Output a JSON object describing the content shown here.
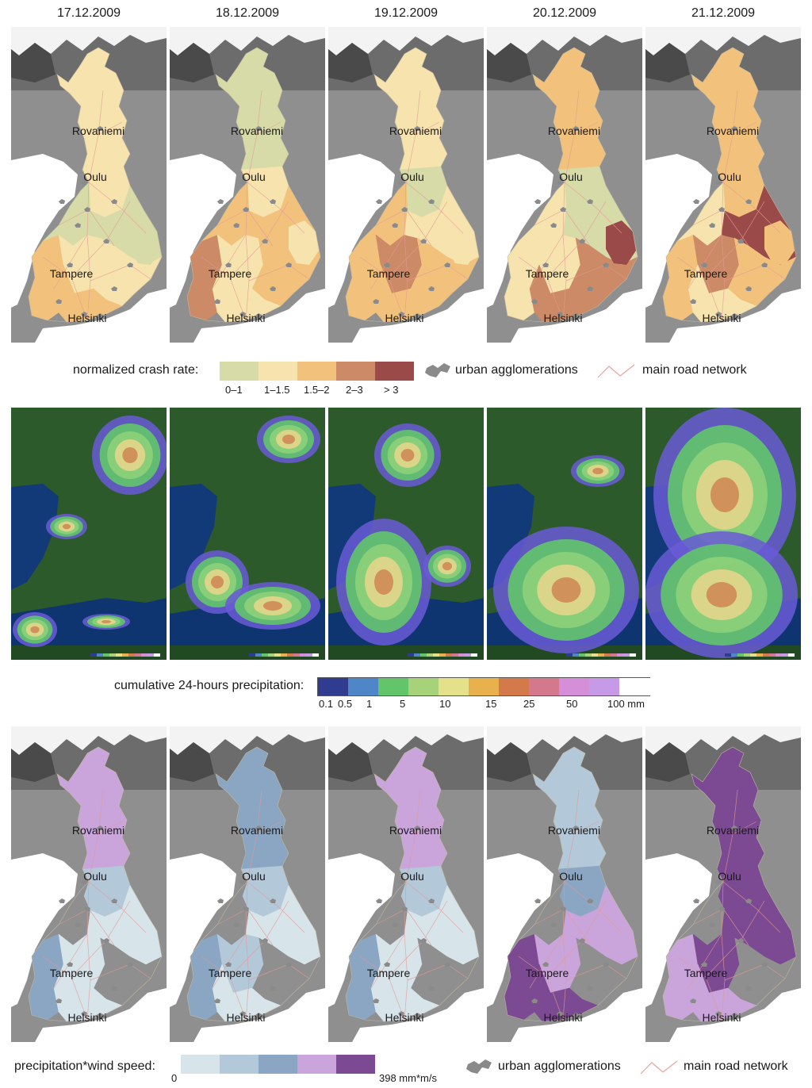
{
  "dates": [
    "17.12.2009",
    "18.12.2009",
    "19.12.2009",
    "20.12.2009",
    "21.12.2009"
  ],
  "cities": [
    "Rovaniemi",
    "Oulu",
    "Tampere",
    "Helsinki"
  ],
  "crash_legend": {
    "title": "normalized crash rate:",
    "classes": [
      {
        "label": "0–1",
        "color": "#d7dba8"
      },
      {
        "label": "1–1.5",
        "color": "#f7e3ad"
      },
      {
        "label": "1.5–2",
        "color": "#f2c27c"
      },
      {
        "label": "2–3",
        "color": "#cc8a66"
      },
      {
        "label": "> 3",
        "color": "#9a4a48"
      }
    ],
    "urban_label": "urban agglomerations",
    "road_label": "main road network"
  },
  "crash_maps": [
    {
      "north": "#f7e3ad",
      "oulu": "#f7e3ad",
      "sw": "#f2c27c",
      "west": "#d7dba8",
      "center": "#f7e3ad",
      "east": "#d7dba8",
      "se": "#f7e3ad",
      "south": "#f2c27c",
      "hotspot": "#d7dba8"
    },
    {
      "north": "#d7dba8",
      "oulu": "#f7e3ad",
      "sw": "#cc8a66",
      "west": "#f2c27c",
      "center": "#f7e3ad",
      "east": "#f2c27c",
      "se": "#f2c27c",
      "south": "#f7e3ad",
      "hotspot": "#f7e3ad"
    },
    {
      "north": "#f7e3ad",
      "oulu": "#d7dba8",
      "sw": "#f2c27c",
      "west": "#f2c27c",
      "center": "#cc8a66",
      "east": "#f7e3ad",
      "se": "#f2c27c",
      "south": "#f2c27c",
      "hotspot": "#f7e3ad"
    },
    {
      "north": "#f2c27c",
      "oulu": "#d7dba8",
      "sw": "#f7e3ad",
      "west": "#f7e3ad",
      "center": "#f7e3ad",
      "east": "#d7dba8",
      "se": "#cc8a66",
      "south": "#cc8a66",
      "hotspot": "#9a4a48"
    },
    {
      "north": "#f2c27c",
      "oulu": "#f2c27c",
      "sw": "#f2c27c",
      "west": "#f7e3ad",
      "center": "#cc8a66",
      "east": "#9a4a48",
      "se": "#f2c27c",
      "south": "#f7e3ad",
      "hotspot": "#f2c27c"
    }
  ],
  "precip_legend": {
    "title": "cumulative 24-hours precipitation:",
    "ticks": [
      "0.1",
      "0.5",
      "1",
      "5",
      "10",
      "15",
      "25",
      "50",
      "100 mm"
    ],
    "colors": [
      "#2f3c8f",
      "#4f86c8",
      "#62c56a",
      "#a8d27a",
      "#e5e08a",
      "#e9b04e",
      "#d47a4a",
      "#d4788e",
      "#d58fd9",
      "#c79ae8",
      "#ffffff"
    ]
  },
  "precip_maps": [
    {
      "coverage": "north-south-patches"
    },
    {
      "coverage": "southwest-northeast"
    },
    {
      "coverage": "south-and-north"
    },
    {
      "coverage": "broad-south"
    },
    {
      "coverage": "whole-country"
    }
  ],
  "wind_legend": {
    "title": "precipitation*wind speed:",
    "min_label": "0",
    "max_label": "398 mm*m/s",
    "colors": [
      "#d7e4ea",
      "#b3c8d8",
      "#8aa6c2",
      "#c9a5dc",
      "#7b4a92"
    ],
    "urban_label": "urban agglomerations",
    "road_label": "main road network"
  },
  "wind_maps": [
    {
      "north": "#c9a5dc",
      "oulu": "#b3c8d8",
      "center": "#d7e4ea",
      "south": "#d7e4ea",
      "sw": "#8aa6c2",
      "east": "#d7e4ea"
    },
    {
      "north": "#8aa6c2",
      "oulu": "#b3c8d8",
      "center": "#b3c8d8",
      "south": "#d7e4ea",
      "sw": "#8aa6c2",
      "east": "#d7e4ea"
    },
    {
      "north": "#c9a5dc",
      "oulu": "#b3c8d8",
      "center": "#d7e4ea",
      "south": "#d7e4ea",
      "sw": "#8aa6c2",
      "east": "#d7e4ea"
    },
    {
      "north": "#b3c8d8",
      "oulu": "#8aa6c2",
      "center": "#c9a5dc",
      "south": "#7b4a92",
      "sw": "#7b4a92",
      "east": "#c9a5dc"
    },
    {
      "north": "#7b4a92",
      "oulu": "#7b4a92",
      "center": "#7b4a92",
      "south": "#c9a5dc",
      "sw": "#c9a5dc",
      "east": "#7b4a92"
    }
  ]
}
